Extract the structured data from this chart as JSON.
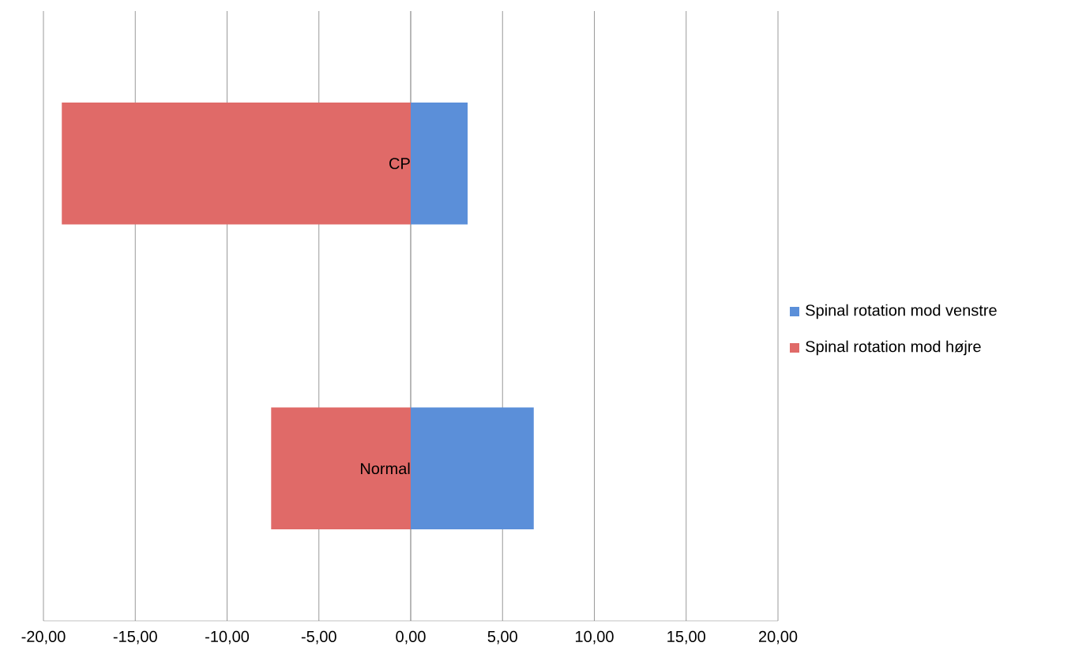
{
  "chart_data": {
    "type": "bar",
    "orientation": "horizontal",
    "stacked": true,
    "categories": [
      "CP",
      "Normal"
    ],
    "series": [
      {
        "name": "Spinal rotation mod venstre",
        "color": "#5b8fd9",
        "values": [
          3.1,
          6.7
        ]
      },
      {
        "name": "Spinal rotation mod højre",
        "color": "#e06a68",
        "values": [
          -19.0,
          -7.6
        ]
      }
    ],
    "xlim": [
      -20,
      20
    ],
    "xticks": [
      {
        "value": -20,
        "label": "-20,00"
      },
      {
        "value": -15,
        "label": "-15,00"
      },
      {
        "value": -10,
        "label": "-10,00"
      },
      {
        "value": -5,
        "label": "-5,00"
      },
      {
        "value": 0,
        "label": "0,00"
      },
      {
        "value": 5,
        "label": "5,00"
      },
      {
        "value": 10,
        "label": "10,00"
      },
      {
        "value": 15,
        "label": "15,00"
      },
      {
        "value": 20,
        "label": "20,00"
      }
    ],
    "grid": "x",
    "legend": "right"
  }
}
